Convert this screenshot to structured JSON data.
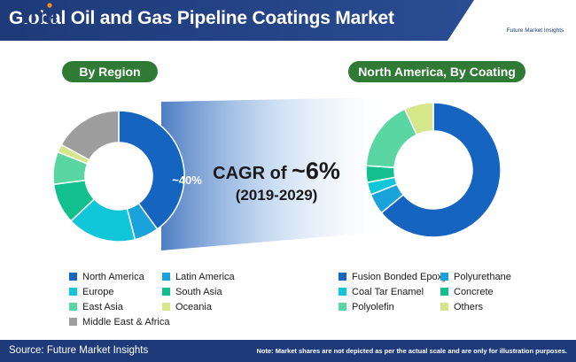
{
  "header": {
    "title": "Global Oil and Gas Pipeline Coatings Market",
    "logo_text": "fmi",
    "logo_subtext": "Future Market Insights"
  },
  "sections": {
    "left_label": "By Region",
    "right_label": "North America, By Coating"
  },
  "cagr": {
    "label": "CAGR of ",
    "value": "~6%",
    "years": "(2019-2029)"
  },
  "colors": {
    "header_bg": "#1e3a78",
    "pill_bg": "#2f7a35",
    "footer_bg": "#1e3a78"
  },
  "chart_data": [
    {
      "type": "pie",
      "subtype": "donut",
      "title": "By Region",
      "annotation": "~40%",
      "categories": [
        "North America",
        "Latin America",
        "Europe",
        "South Asia",
        "East Asia",
        "Oceania",
        "Middle East & Africa"
      ],
      "values": [
        40,
        6,
        17,
        10,
        8,
        2,
        17
      ],
      "colors": [
        "#1565c0",
        "#1aa3db",
        "#12c6d9",
        "#13bf8f",
        "#5ad6a3",
        "#d6e68a",
        "#9e9e9e"
      ],
      "legend_placement": "bottom"
    },
    {
      "type": "pie",
      "subtype": "donut",
      "title": "North America, By Coating",
      "categories": [
        "Fusion Bonded Epoxy",
        "Polyurethane",
        "Coal Tar Enamel",
        "Concrete",
        "Polyolefin",
        "Others"
      ],
      "values": [
        64,
        5,
        3,
        4,
        17,
        7
      ],
      "colors": [
        "#1565c0",
        "#1aa3db",
        "#12c6d9",
        "#13bf8f",
        "#5ad6a3",
        "#d6e68a"
      ],
      "legend_placement": "bottom"
    }
  ],
  "footer": {
    "source": "Source: Future Market Insights",
    "note": "Note: Market shares are not depicted as per the actual scale and are only for illustration purposes."
  }
}
